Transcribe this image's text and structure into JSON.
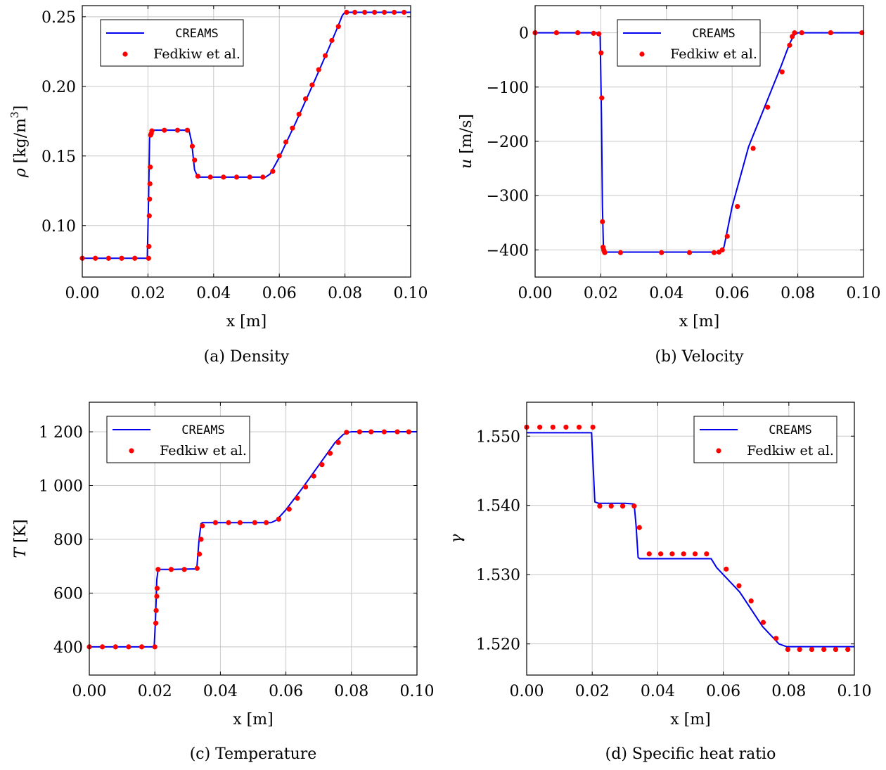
{
  "chart_data": [
    {
      "type": "line",
      "id": "a",
      "caption": "(a) Density",
      "xlabel": "x [m]",
      "ylabel_main": "ρ",
      "ylabel_unit": "[kg/m",
      "ylabel_sup": "3",
      "ylabel_close": "]",
      "xlim": [
        0,
        0.1
      ],
      "ylim": [
        0.063,
        0.258
      ],
      "xticks": [
        0,
        0.02,
        0.04,
        0.06,
        0.08,
        0.1
      ],
      "xtick_labels": [
        "0.00",
        "0.02",
        "0.04",
        "0.06",
        "0.08",
        "0.10"
      ],
      "yticks": [
        0.1,
        0.15,
        0.2,
        0.25
      ],
      "ytick_labels": [
        "0.10",
        "0.15",
        "0.20",
        "0.25"
      ],
      "grid": true,
      "legend_position": "top-left",
      "series": [
        {
          "name": "CREAMS",
          "style": "line",
          "color": "#0000ee",
          "x": [
            0,
            0.0198,
            0.0202,
            0.0205,
            0.021,
            0.025,
            0.0325,
            0.0333,
            0.0342,
            0.0352,
            0.045,
            0.0558,
            0.0572,
            0.06,
            0.065,
            0.07,
            0.075,
            0.0775,
            0.0792,
            0.08,
            0.1
          ],
          "y": [
            0.0765,
            0.0765,
            0.12,
            0.163,
            0.1685,
            0.1685,
            0.1685,
            0.16,
            0.14,
            0.1348,
            0.1348,
            0.1348,
            0.137,
            0.149,
            0.174,
            0.2,
            0.227,
            0.241,
            0.251,
            0.2532,
            0.2532
          ]
        },
        {
          "name": "Fedkiw et al.",
          "style": "markers",
          "color": "#ff0000",
          "x": [
            0.0,
            0.004,
            0.008,
            0.012,
            0.016,
            0.0202,
            0.0203,
            0.0204,
            0.0205,
            0.0206,
            0.0207,
            0.0208,
            0.021,
            0.0212,
            0.025,
            0.029,
            0.032,
            0.0335,
            0.0342,
            0.0352,
            0.039,
            0.043,
            0.047,
            0.051,
            0.055,
            0.058,
            0.06,
            0.062,
            0.064,
            0.066,
            0.068,
            0.07,
            0.072,
            0.074,
            0.076,
            0.078,
            0.0805,
            0.083,
            0.086,
            0.089,
            0.092,
            0.095,
            0.098
          ],
          "y": [
            0.0765,
            0.0765,
            0.0765,
            0.0765,
            0.0765,
            0.0765,
            0.085,
            0.107,
            0.119,
            0.13,
            0.142,
            0.165,
            0.166,
            0.168,
            0.1685,
            0.1685,
            0.1685,
            0.157,
            0.147,
            0.1355,
            0.1348,
            0.1348,
            0.1348,
            0.1348,
            0.1348,
            0.139,
            0.15,
            0.16,
            0.17,
            0.18,
            0.191,
            0.201,
            0.212,
            0.222,
            0.233,
            0.243,
            0.2532,
            0.2532,
            0.2532,
            0.2532,
            0.2532,
            0.2532,
            0.2532
          ]
        }
      ]
    },
    {
      "type": "line",
      "id": "b",
      "caption": "(b) Velocity",
      "xlabel": "x [m]",
      "ylabel_main": "u",
      "ylabel_unit": "[m/s]",
      "ylabel_sup": "",
      "ylabel_close": "",
      "xlim": [
        0,
        0.1
      ],
      "ylim": [
        -450,
        50
      ],
      "xticks": [
        0,
        0.02,
        0.04,
        0.06,
        0.08,
        0.1
      ],
      "xtick_labels": [
        "0.00",
        "0.02",
        "0.04",
        "0.06",
        "0.08",
        "0.10"
      ],
      "yticks": [
        0,
        -100,
        -200,
        -300,
        -400
      ],
      "ytick_labels": [
        "0",
        "−100",
        "−200",
        "−300",
        "−400"
      ],
      "grid": true,
      "legend_position": "top-center",
      "series": [
        {
          "name": "CREAMS",
          "style": "line",
          "color": "#0000ee",
          "x": [
            0,
            0.019,
            0.0198,
            0.0202,
            0.0205,
            0.0208,
            0.0213,
            0.03,
            0.05,
            0.0558,
            0.0575,
            0.06,
            0.065,
            0.07,
            0.075,
            0.0775,
            0.0788,
            0.08,
            0.1
          ],
          "y": [
            0,
            0,
            -5,
            -150,
            -320,
            -395,
            -404,
            -404,
            -404,
            -404,
            -395,
            -320,
            -210,
            -135,
            -60,
            -20,
            -5,
            0,
            0
          ]
        },
        {
          "name": "Fedkiw et al.",
          "style": "markers",
          "color": "#ff0000",
          "x": [
            0.0,
            0.0065,
            0.013,
            0.0178,
            0.0194,
            0.0201,
            0.0203,
            0.0205,
            0.0207,
            0.0209,
            0.021,
            0.0212,
            0.026,
            0.0385,
            0.047,
            0.0545,
            0.056,
            0.057,
            0.0585,
            0.0616,
            0.0664,
            0.0708,
            0.0752,
            0.0775,
            0.0783,
            0.079,
            0.0812,
            0.09,
            0.0995
          ],
          "y": [
            0,
            0,
            0,
            -1,
            -2,
            -37,
            -120,
            -348,
            -395,
            -400,
            -402,
            -405,
            -405,
            -405,
            -405,
            -405,
            -404,
            -400,
            -375,
            -320,
            -213,
            -137,
            -72,
            -23,
            -7,
            0,
            0,
            0,
            0
          ]
        }
      ]
    },
    {
      "type": "line",
      "id": "c",
      "caption": "(c) Temperature",
      "xlabel": "x [m]",
      "ylabel_main": "T",
      "ylabel_unit": "[K]",
      "ylabel_sup": "",
      "ylabel_close": "",
      "xlim": [
        0,
        0.1
      ],
      "ylim": [
        295,
        1310
      ],
      "xticks": [
        0,
        0.02,
        0.04,
        0.06,
        0.08,
        0.1
      ],
      "xtick_labels": [
        "0.00",
        "0.02",
        "0.04",
        "0.06",
        "0.08",
        "0.10"
      ],
      "yticks": [
        400,
        600,
        800,
        1000,
        1200
      ],
      "ytick_labels": [
        "400",
        "600",
        "800",
        "1 000",
        "1 200"
      ],
      "grid": true,
      "legend_position": "top-left",
      "series": [
        {
          "name": "CREAMS",
          "style": "line",
          "color": "#0000ee",
          "x": [
            0,
            0.0198,
            0.0202,
            0.0206,
            0.021,
            0.025,
            0.0328,
            0.0335,
            0.0341,
            0.0345,
            0.045,
            0.0555,
            0.0572,
            0.06,
            0.065,
            0.07,
            0.075,
            0.0775,
            0.079,
            0.08,
            0.1
          ],
          "y": [
            400,
            400,
            500,
            650,
            688,
            688,
            690,
            800,
            858,
            862,
            862,
            862,
            872,
            910,
            990,
            1075,
            1160,
            1190,
            1198,
            1200,
            1200
          ]
        },
        {
          "name": "Fedkiw et al.",
          "style": "markers",
          "color": "#ff0000",
          "x": [
            0.0,
            0.004,
            0.008,
            0.012,
            0.016,
            0.02,
            0.0203,
            0.0204,
            0.0206,
            0.0207,
            0.021,
            0.025,
            0.029,
            0.0329,
            0.0336,
            0.0341,
            0.0345,
            0.0385,
            0.0425,
            0.046,
            0.0505,
            0.054,
            0.0578,
            0.061,
            0.0635,
            0.066,
            0.0685,
            0.071,
            0.0735,
            0.076,
            0.0785,
            0.0825,
            0.086,
            0.09,
            0.094,
            0.0975
          ],
          "y": [
            400,
            400,
            400,
            400,
            400,
            400,
            488,
            535,
            588,
            618,
            688,
            688,
            688,
            692,
            745,
            800,
            850,
            862,
            862,
            862,
            862,
            862,
            875,
            912,
            953,
            995,
            1035,
            1078,
            1120,
            1160,
            1198,
            1200,
            1200,
            1200,
            1200,
            1200
          ]
        }
      ]
    },
    {
      "type": "line",
      "id": "d",
      "caption": "(d) Specific heat ratio",
      "xlabel": "x [m]",
      "ylabel_main": "γ",
      "ylabel_unit": "",
      "ylabel_sup": "",
      "ylabel_close": "",
      "xlim": [
        0,
        0.1
      ],
      "ylim": [
        1.5155,
        1.5549
      ],
      "xticks": [
        0,
        0.02,
        0.04,
        0.06,
        0.08,
        0.1
      ],
      "xtick_labels": [
        "0.00",
        "0.02",
        "0.04",
        "0.06",
        "0.08",
        "0.10"
      ],
      "yticks": [
        1.52,
        1.53,
        1.54,
        1.55
      ],
      "ytick_labels": [
        "1.520",
        "1.530",
        "1.540",
        "1.550"
      ],
      "grid": true,
      "legend_position": "top-right",
      "series": [
        {
          "name": "CREAMS",
          "style": "line",
          "color": "#0000ee",
          "x": [
            0,
            0.0198,
            0.0203,
            0.0208,
            0.022,
            0.03,
            0.0328,
            0.0334,
            0.034,
            0.0345,
            0.045,
            0.0563,
            0.058,
            0.065,
            0.072,
            0.077,
            0.0793,
            0.0805,
            0.1
          ],
          "y": [
            1.5505,
            1.5505,
            1.5455,
            1.5405,
            1.5403,
            1.5403,
            1.5402,
            1.537,
            1.5325,
            1.5323,
            1.5323,
            1.5323,
            1.531,
            1.5275,
            1.5225,
            1.52,
            1.5196,
            1.5196,
            1.5196
          ]
        },
        {
          "name": "Fedkiw et al.",
          "style": "markers",
          "color": "#ff0000",
          "x": [
            0.0,
            0.004,
            0.008,
            0.012,
            0.016,
            0.0202,
            0.0223,
            0.0258,
            0.0293,
            0.0328,
            0.0344,
            0.0374,
            0.0409,
            0.0444,
            0.0479,
            0.0514,
            0.0549,
            0.0609,
            0.0648,
            0.0685,
            0.0722,
            0.0761,
            0.0797,
            0.0833,
            0.087,
            0.0907,
            0.0943,
            0.098
          ],
          "y": [
            1.5513,
            1.5513,
            1.5513,
            1.5513,
            1.5513,
            1.5513,
            1.5399,
            1.5399,
            1.5399,
            1.5399,
            1.5368,
            1.533,
            1.533,
            1.533,
            1.533,
            1.533,
            1.533,
            1.5308,
            1.5284,
            1.5262,
            1.5231,
            1.5208,
            1.5192,
            1.5192,
            1.5192,
            1.5192,
            1.5192,
            1.5192
          ]
        }
      ]
    }
  ]
}
